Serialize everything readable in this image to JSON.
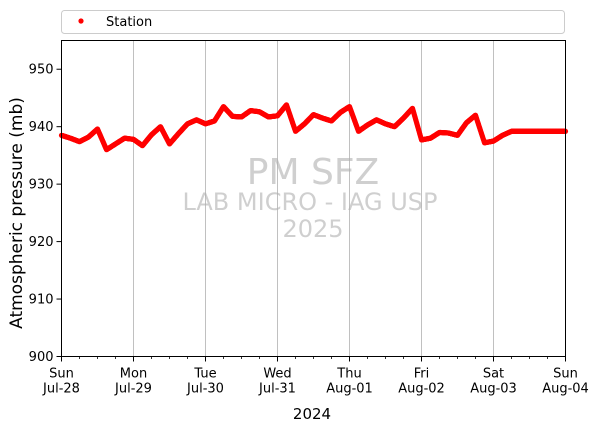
{
  "chart_data": {
    "type": "scatter",
    "xlabel": "2024",
    "ylabel": "Atmospheric pressure (mb)",
    "ylim": [
      900,
      955
    ],
    "xlim": [
      "2024-07-28",
      "2024-08-04"
    ],
    "grid": "vertical at daily ticks",
    "legend": {
      "placement": "top",
      "entries": [
        "Station"
      ]
    },
    "y_ticks": [
      900,
      910,
      920,
      930,
      940,
      950
    ],
    "x_ticks": [
      {
        "date": "2024-07-28",
        "day": "Sun",
        "label": "Jul-28"
      },
      {
        "date": "2024-07-29",
        "day": "Mon",
        "label": "Jul-29"
      },
      {
        "date": "2024-07-30",
        "day": "Tue",
        "label": "Jul-30"
      },
      {
        "date": "2024-07-31",
        "day": "Wed",
        "label": "Jul-31"
      },
      {
        "date": "2024-08-01",
        "day": "Thu",
        "label": "Aug-01"
      },
      {
        "date": "2024-08-02",
        "day": "Fri",
        "label": "Aug-02"
      },
      {
        "date": "2024-08-03",
        "day": "Sat",
        "label": "Aug-03"
      },
      {
        "date": "2024-08-04",
        "day": "Sun",
        "label": "Aug-04"
      }
    ],
    "watermark": [
      "PM SFZ",
      "LAB MICRO - IAG USP",
      "2025"
    ],
    "series": [
      {
        "name": "Station",
        "color": "#ff0000",
        "x": [
          "2024-07-28 00:00",
          "2024-07-28 03:00",
          "2024-07-28 06:00",
          "2024-07-28 09:00",
          "2024-07-28 12:00",
          "2024-07-28 15:00",
          "2024-07-28 18:00",
          "2024-07-28 21:00",
          "2024-07-29 00:00",
          "2024-07-29 03:00",
          "2024-07-29 06:00",
          "2024-07-29 09:00",
          "2024-07-29 12:00",
          "2024-07-29 15:00",
          "2024-07-29 18:00",
          "2024-07-29 21:00",
          "2024-07-30 00:00",
          "2024-07-30 03:00",
          "2024-07-30 06:00",
          "2024-07-30 09:00",
          "2024-07-30 12:00",
          "2024-07-30 15:00",
          "2024-07-30 18:00",
          "2024-07-30 21:00",
          "2024-07-31 00:00",
          "2024-07-31 03:00",
          "2024-07-31 06:00",
          "2024-07-31 09:00",
          "2024-07-31 12:00",
          "2024-07-31 15:00",
          "2024-07-31 18:00",
          "2024-07-31 21:00",
          "2024-08-01 00:00",
          "2024-08-01 03:00",
          "2024-08-01 06:00",
          "2024-08-01 09:00",
          "2024-08-01 12:00",
          "2024-08-01 15:00",
          "2024-08-01 18:00",
          "2024-08-01 21:00",
          "2024-08-02 00:00",
          "2024-08-02 03:00",
          "2024-08-02 06:00",
          "2024-08-02 09:00",
          "2024-08-02 12:00",
          "2024-08-02 15:00",
          "2024-08-02 18:00",
          "2024-08-02 21:00",
          "2024-08-03 00:00",
          "2024-08-03 03:00",
          "2024-08-03 06:00",
          "2024-08-03 09:00",
          "2024-08-03 12:00",
          "2024-08-03 15:00",
          "2024-08-03 18:00",
          "2024-08-03 21:00",
          "2024-08-04 00:00"
        ],
        "y": [
          938.5,
          938.0,
          937.4,
          938.2,
          939.6,
          936.0,
          937.0,
          938.0,
          937.8,
          936.7,
          938.6,
          940.0,
          937.0,
          938.8,
          940.5,
          941.2,
          940.5,
          941.0,
          943.5,
          941.8,
          941.7,
          942.8,
          942.6,
          941.7,
          941.9,
          943.8,
          939.2,
          940.5,
          942.1,
          941.5,
          941.0,
          942.5,
          943.5,
          939.2,
          940.3,
          941.2,
          940.5,
          940.0,
          941.5,
          943.2,
          937.7,
          938.0,
          939.0,
          938.9,
          938.5,
          940.7,
          942.0,
          937.2,
          937.5,
          938.5,
          939.2,
          939.2,
          939.2,
          939.2,
          939.2,
          939.2,
          939.2
        ]
      }
    ]
  }
}
